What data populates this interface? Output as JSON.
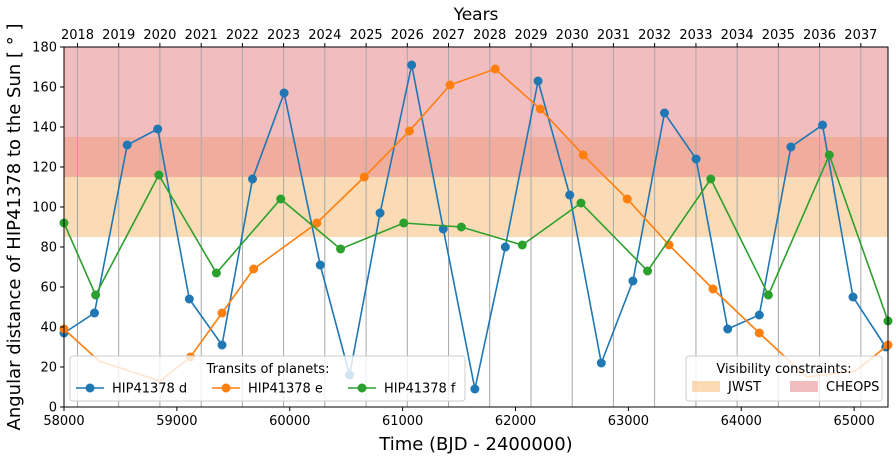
{
  "chart_data": {
    "type": "line",
    "xlabel": "Time (BJD - 2400000)",
    "ylabel": "Angular distance of HIP41378 to the Sun [ ]",
    "top_axis_label": "Years",
    "xlim": [
      58000,
      65300
    ],
    "ylim": [
      0,
      180
    ],
    "x_ticks": [
      58000,
      59000,
      60000,
      61000,
      62000,
      63000,
      64000,
      65000
    ],
    "y_ticks": [
      0,
      20,
      40,
      60,
      80,
      100,
      120,
      140,
      160,
      180
    ],
    "year_ticks": [
      {
        "label": "2018",
        "x": 58119.5
      },
      {
        "label": "2019",
        "x": 58484.5
      },
      {
        "label": "2020",
        "x": 58849.5
      },
      {
        "label": "2021",
        "x": 59215.5
      },
      {
        "label": "2022",
        "x": 59580.5
      },
      {
        "label": "2023",
        "x": 59945.5
      },
      {
        "label": "2024",
        "x": 60310.5
      },
      {
        "label": "2025",
        "x": 60676.5
      },
      {
        "label": "2026",
        "x": 61041.5
      },
      {
        "label": "2027",
        "x": 61406.5
      },
      {
        "label": "2028",
        "x": 61771.5
      },
      {
        "label": "2029",
        "x": 62137.5
      },
      {
        "label": "2030",
        "x": 62502.5
      },
      {
        "label": "2031",
        "x": 62867.5
      },
      {
        "label": "2032",
        "x": 63232.5
      },
      {
        "label": "2033",
        "x": 63598.5
      },
      {
        "label": "2034",
        "x": 63963.5
      },
      {
        "label": "2035",
        "x": 64328.5
      },
      {
        "label": "2036",
        "x": 64693.5
      },
      {
        "label": "2037",
        "x": 65059.5
      }
    ],
    "bands": [
      {
        "name": "JWST",
        "y0": 85,
        "y1": 135,
        "color": "#f7be7a"
      },
      {
        "name": "CHEOPS",
        "y0": 115,
        "y1": 180,
        "color": "#e8868b"
      }
    ],
    "series": [
      {
        "name": "HIP41378 d",
        "color": "#1f77b4",
        "x": [
          58000,
          58270,
          58560,
          58830,
          59110,
          59400,
          59670,
          59950,
          60270,
          60530,
          60800,
          61080,
          61360,
          61640,
          61910,
          62200,
          62480,
          62760,
          63040,
          63320,
          63600,
          63880,
          64160,
          64440,
          64720,
          64990,
          65280
        ],
        "y": [
          37,
          47,
          131,
          139,
          54,
          31,
          114,
          157,
          71,
          16,
          97,
          171,
          89,
          9,
          80,
          163,
          106,
          22,
          63,
          147,
          124,
          39,
          46,
          130,
          141,
          55,
          30
        ]
      },
      {
        "name": "HIP41378 e",
        "color": "#ff7f0e",
        "x": [
          58000,
          58310,
          58850,
          59120,
          59400,
          59680,
          60240,
          60660,
          61060,
          61420,
          61820,
          62220,
          62600,
          62990,
          63360,
          63750,
          64160,
          64580,
          65010,
          65300
        ],
        "y": [
          39,
          23,
          13,
          25,
          47,
          69,
          92,
          115,
          138,
          161,
          169,
          149,
          126,
          104,
          81,
          59,
          37,
          15,
          18,
          31
        ],
        "hidden_marker_x": [
          58310,
          58850,
          64580,
          65010
        ]
      },
      {
        "name": "HIP41378 f",
        "color": "#2ca02c",
        "x": [
          58000,
          58280,
          58840,
          59350,
          59920,
          60450,
          61010,
          61520,
          62060,
          62580,
          63170,
          63730,
          64240,
          64780,
          65300
        ],
        "y": [
          92,
          56,
          116,
          67,
          104,
          79,
          92,
          90,
          81,
          102,
          68,
          114,
          56,
          126,
          43
        ]
      }
    ],
    "legend_planets": {
      "title": "Transits of planets:",
      "position": "bottom-left"
    },
    "legend_constraints": {
      "title": "Visibility constraints:",
      "position": "bottom-right"
    },
    "grid": "vertical lines at year ticks"
  }
}
